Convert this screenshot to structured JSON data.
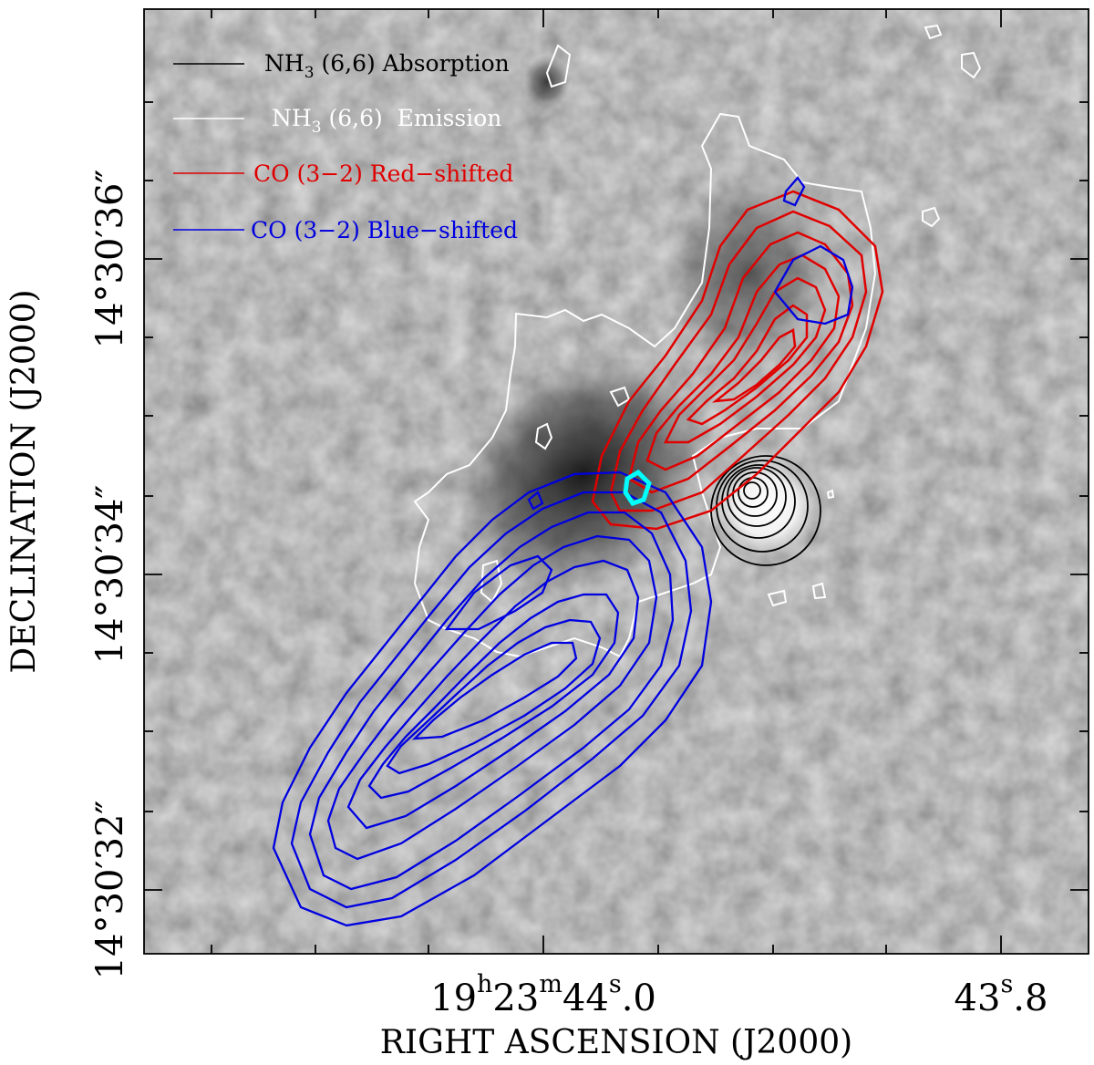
{
  "figure": {
    "xlabel": "RIGHT ASCENSION (J2000)",
    "ylabel": "DECLINATION (J2000)",
    "x_ticks": [
      {
        "h": "19",
        "m": "23",
        "s": "44",
        "frac": "0",
        "label": "19h23m44.0s"
      },
      {
        "s": "43",
        "frac": "8",
        "label": "43.8s"
      }
    ],
    "y_ticks": [
      {
        "deg": "14",
        "min": "30",
        "sec": "36",
        "label": "14°30′36″"
      },
      {
        "deg": "14",
        "min": "30",
        "sec": "34",
        "label": "14°30′34″"
      },
      {
        "deg": "14",
        "min": "30",
        "sec": "32",
        "label": "14°30′32″"
      }
    ],
    "legend": [
      {
        "species": "NH",
        "sub": "3",
        "rest": " (6,6) Absorption",
        "color": "#000000"
      },
      {
        "species": "NH",
        "sub": "3",
        "rest": " (6,6)  Emission",
        "color": "#ffffff"
      },
      {
        "species": "CO",
        "sub": "",
        "rest": " (3−2) Red−shifted",
        "color": "#ff0000"
      },
      {
        "species": "CO",
        "sub": "",
        "rest": " (3−2) Blue−shifted",
        "color": "#0000ff"
      }
    ],
    "colors": {
      "background_gray": "#9a9a9a",
      "absorption": "#000000",
      "emission": "#ffffff",
      "red_shifted": "#e00000",
      "blue_shifted": "#0000e0",
      "marker": "#00ffff"
    }
  }
}
